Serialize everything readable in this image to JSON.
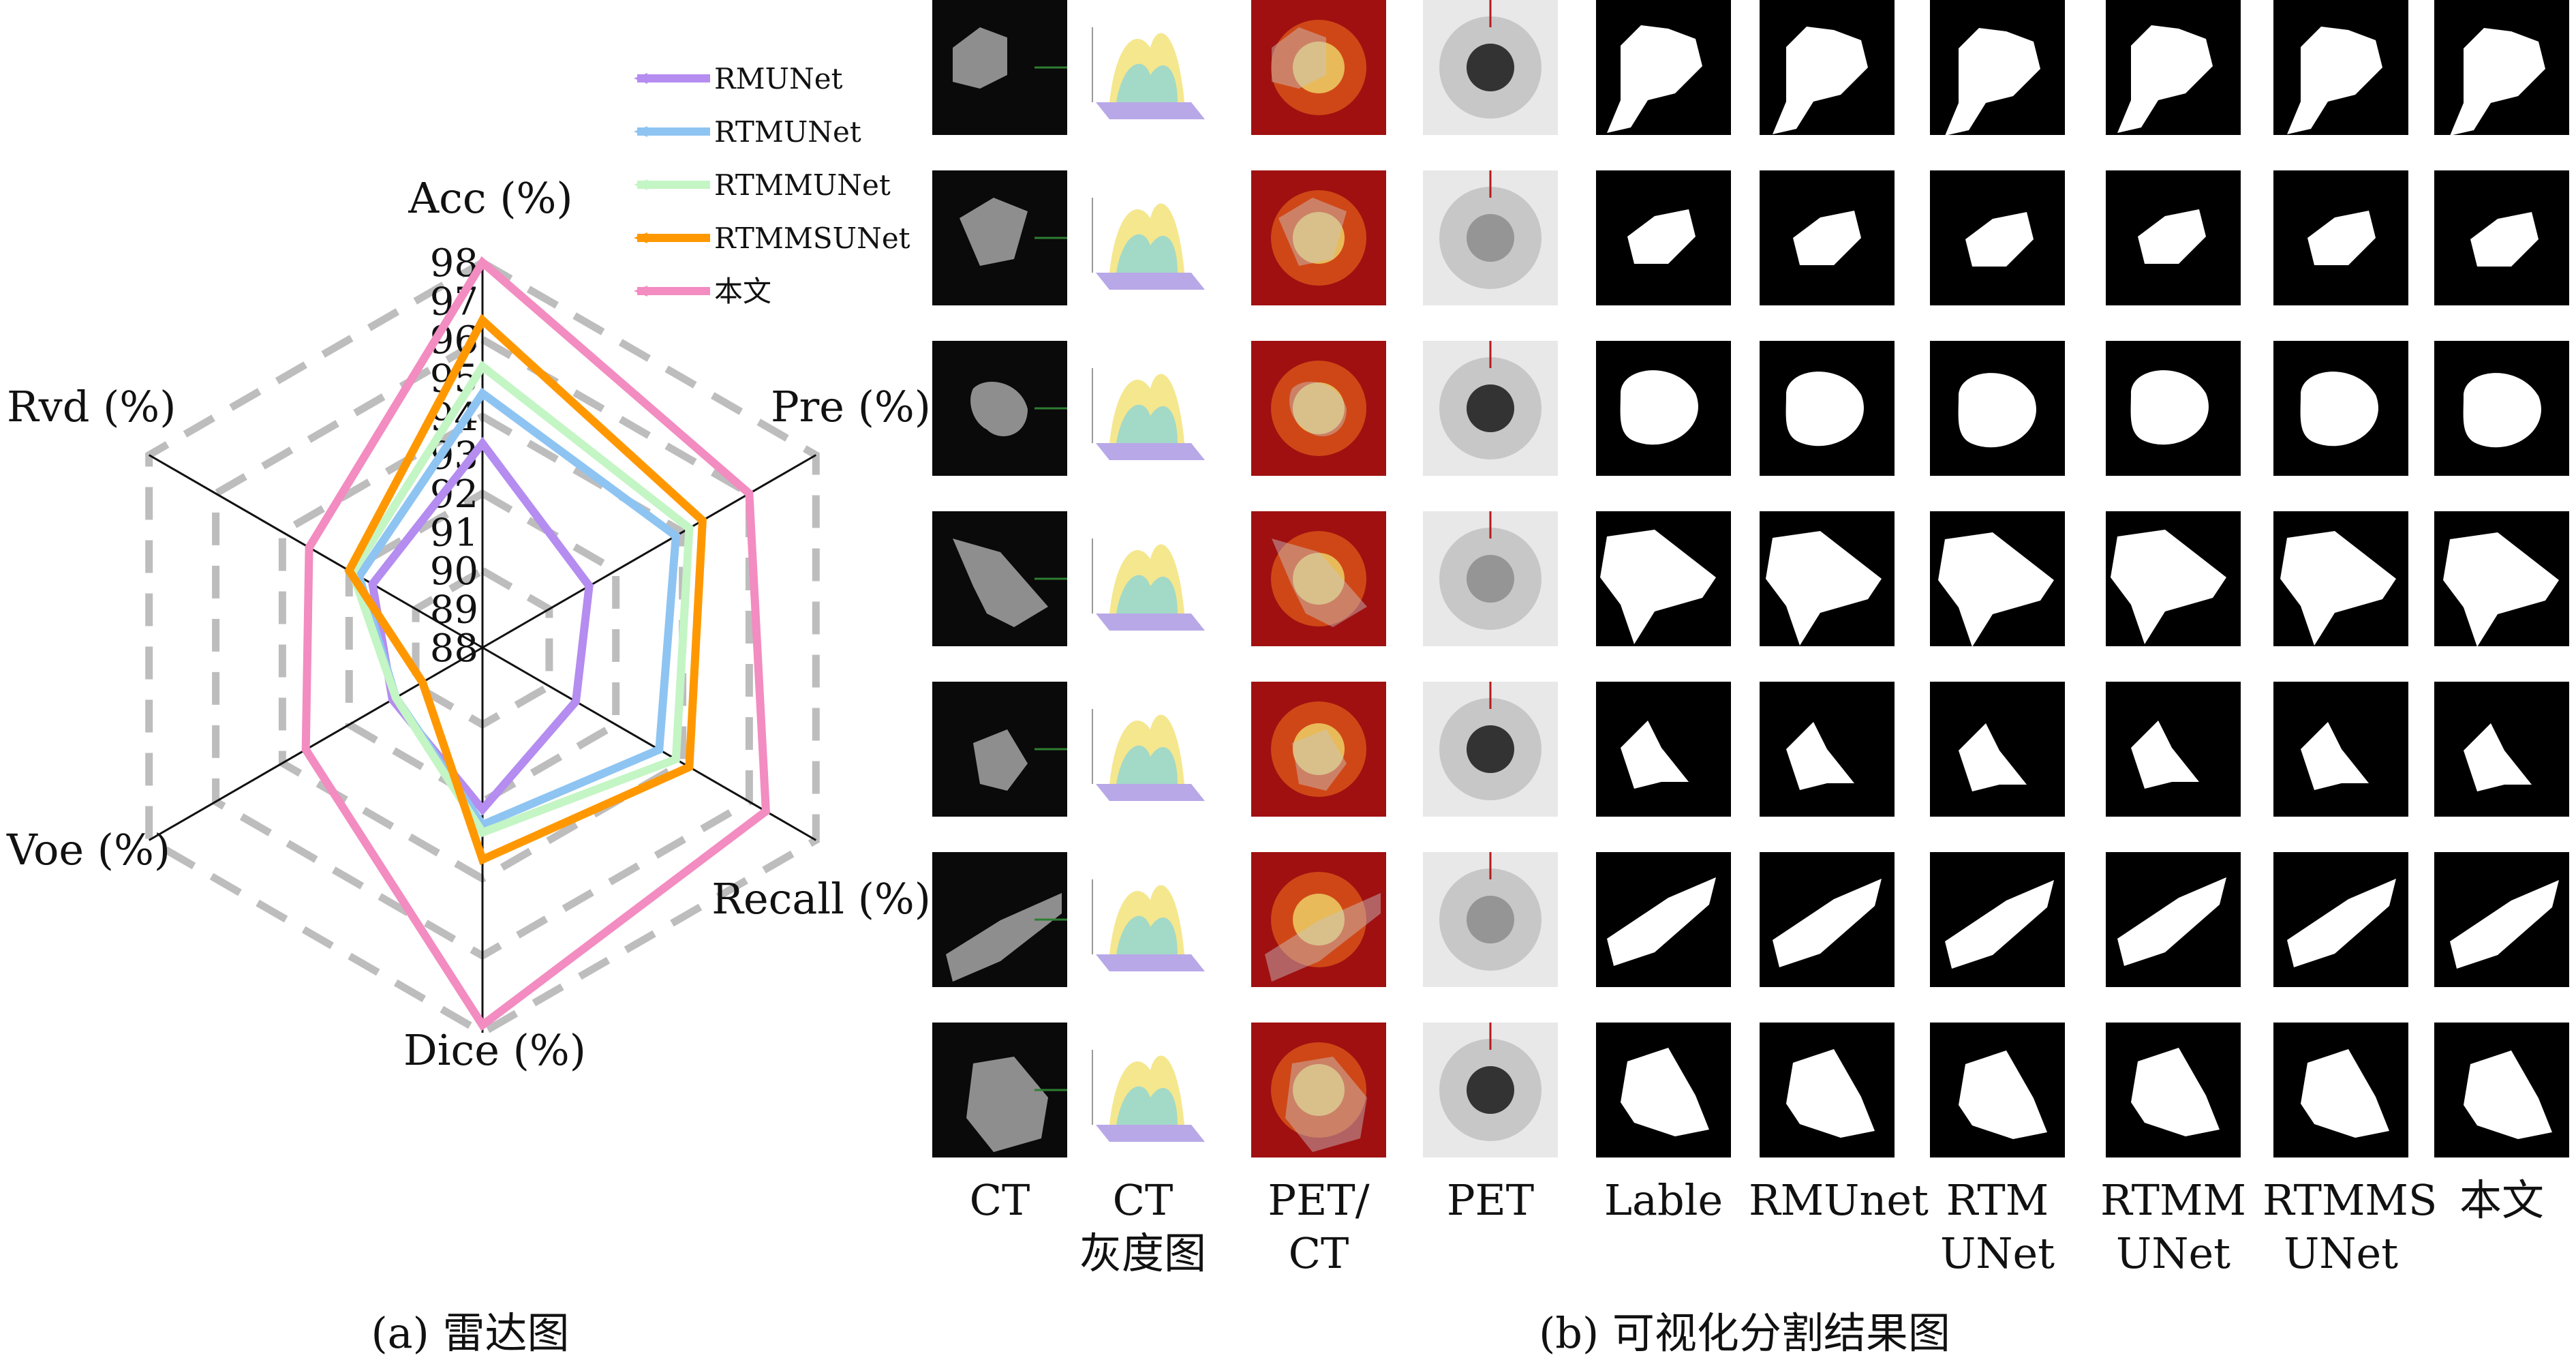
{
  "chart_data": [
    {
      "type": "radar",
      "caption": "(a) 雷达图",
      "axes": [
        "Acc (%)",
        "Pre (%)",
        "Recall (%)",
        "Dice (%)",
        "Voe (%)",
        "Rvd (%)"
      ],
      "scale_ticks": [
        "98",
        "97",
        "96",
        "95",
        "94",
        "93",
        "92",
        "91",
        "90",
        "89",
        "88"
      ],
      "range": [
        88,
        98
      ],
      "grid": "dashed hexagons",
      "legend_position": "top-right",
      "series": [
        {
          "name": "RMUNet",
          "color": "#b58cf0",
          "values": [
            93.3,
            91.2,
            90.8,
            92.2,
            90.7,
            91.3
          ]
        },
        {
          "name": "RTMUNet",
          "color": "#8ec4f2",
          "values": [
            94.6,
            93.8,
            93.3,
            92.6,
            90.6,
            91.7
          ]
        },
        {
          "name": "RTMMUNet",
          "color": "#c4f5c4",
          "values": [
            95.3,
            94.2,
            93.8,
            92.8,
            90.6,
            91.9
          ]
        },
        {
          "name": "RTMMSUNet",
          "color": "#ff9800",
          "values": [
            96.5,
            94.6,
            94.2,
            93.5,
            89.8,
            92.0
          ]
        },
        {
          "name": "本文",
          "color": "#f28cc1",
          "values": [
            98.0,
            96.0,
            96.5,
            97.8,
            93.3,
            93.2
          ]
        }
      ]
    }
  ],
  "panel_b": {
    "caption": "(b) 可视化分割结果图",
    "columns": [
      "CT",
      "CT\n灰度图",
      "PET/\nCT",
      "PET",
      "Lable",
      "RMUnet",
      "RTM\nUNet",
      "RTMM\nUNet",
      "RTMMS\nUNet",
      "本文"
    ],
    "rows": 7
  }
}
